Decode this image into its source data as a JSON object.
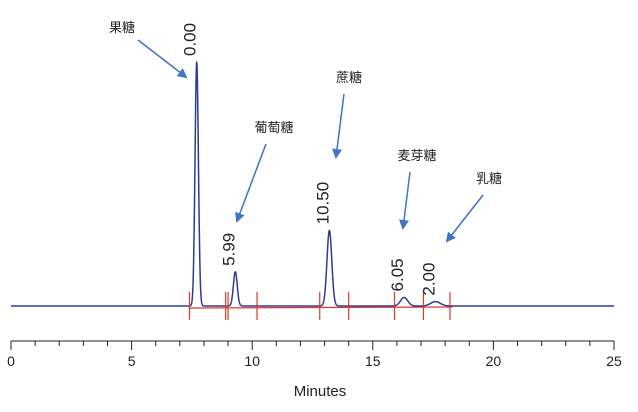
{
  "chart_data": {
    "type": "line",
    "title": "",
    "xlabel": "Minutes",
    "ylabel": "",
    "xlim": [
      0,
      25
    ],
    "x_ticks": [
      "0",
      "5",
      "10",
      "15",
      "20",
      "25"
    ],
    "grid": false,
    "legend": "none",
    "colors": {
      "trace": "#2f3d8f",
      "baseline": "#d93a2b",
      "arrow": "#3f74c6",
      "axis": "#222222"
    },
    "peaks": [
      {
        "retention_time": 7.7,
        "height_fraction": 1.0,
        "width": 0.07,
        "value_label": "0.00"
      },
      {
        "retention_time": 9.3,
        "height_fraction": 0.14,
        "width": 0.08,
        "value_label": "5.99"
      },
      {
        "retention_time": 13.2,
        "height_fraction": 0.31,
        "width": 0.1,
        "value_label": "10.50"
      },
      {
        "retention_time": 16.3,
        "height_fraction": 0.035,
        "width": 0.15,
        "value_label": "6.05"
      },
      {
        "retention_time": 17.6,
        "height_fraction": 0.018,
        "width": 0.2,
        "value_label": "2.00"
      }
    ],
    "integration_marks": [
      7.4,
      8.9,
      9.0,
      10.2,
      12.8,
      14.0,
      15.9,
      17.1,
      18.2
    ],
    "annotations": [
      {
        "label": "果糖",
        "target_x": 7.7
      },
      {
        "label": "葡萄糖",
        "target_x": 9.3
      },
      {
        "label": "蔗糖",
        "target_x": 13.2
      },
      {
        "label": "麦芽糖",
        "target_x": 16.3
      },
      {
        "label": "乳糖",
        "target_x": 17.6
      }
    ]
  }
}
